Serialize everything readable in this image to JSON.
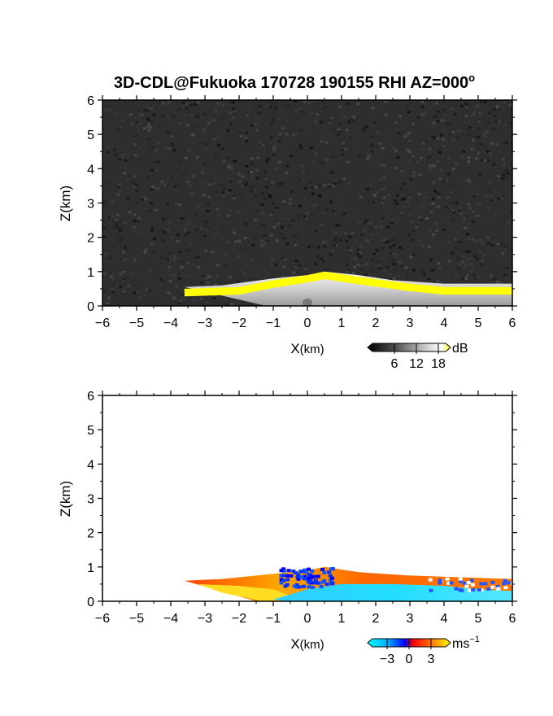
{
  "title": "3D-CDL@Fukuoka 170728 190155 RHI AZ=000",
  "title_superscript": "o",
  "chart_data": [
    {
      "type": "heatmap",
      "panel": "reflectivity",
      "xlabel_main": "X",
      "xlabel_unit": "(km)",
      "ylabel": "Z(km)",
      "xlim": [
        -6,
        6
      ],
      "ylim": [
        0,
        6
      ],
      "x_ticks": [
        "-6",
        "-5",
        "-4",
        "-3",
        "-2",
        "-1",
        "0",
        "1",
        "2",
        "3",
        "4",
        "5",
        "6"
      ],
      "y_ticks": [
        "0",
        "1",
        "2",
        "3",
        "4",
        "5",
        "6"
      ],
      "grid": false,
      "background_color": "#2e2e2e",
      "colorbar": {
        "unit": "dB",
        "tick_labels": [
          "6",
          "12",
          "18"
        ],
        "tick_values": [
          6,
          12,
          18
        ],
        "range": [
          0,
          20
        ],
        "colors": [
          "#000000",
          "#555555",
          "#aaaaaa",
          "#ffffff",
          "#ffff00"
        ]
      },
      "echo_top_km": [
        {
          "x": -3.6,
          "z": 0.55
        },
        {
          "x": -2.5,
          "z": 0.6
        },
        {
          "x": -1.0,
          "z": 0.8
        },
        {
          "x": 0.0,
          "z": 0.9
        },
        {
          "x": 0.5,
          "z": 1.0
        },
        {
          "x": 1.5,
          "z": 0.9
        },
        {
          "x": 2.5,
          "z": 0.75
        },
        {
          "x": 4.0,
          "z": 0.65
        },
        {
          "x": 6.0,
          "z": 0.65
        }
      ],
      "strong_echo_top_km": [
        {
          "x": -3.6,
          "z": 0.5
        },
        {
          "x": -2.0,
          "z": 0.55
        },
        {
          "x": -1.0,
          "z": 0.75
        },
        {
          "x": 0.0,
          "z": 0.9
        },
        {
          "x": 0.5,
          "z": 1.0
        },
        {
          "x": 1.5,
          "z": 0.85
        },
        {
          "x": 3.0,
          "z": 0.65
        },
        {
          "x": 4.0,
          "z": 0.55
        },
        {
          "x": 6.0,
          "z": 0.55
        }
      ]
    },
    {
      "type": "heatmap",
      "panel": "doppler_velocity",
      "xlabel_main": "X",
      "xlabel_unit": "(km)",
      "ylabel": "Z(km)",
      "xlim": [
        -6,
        6
      ],
      "ylim": [
        0,
        6
      ],
      "x_ticks": [
        "-6",
        "-5",
        "-4",
        "-3",
        "-2",
        "-1",
        "0",
        "1",
        "2",
        "3",
        "4",
        "5",
        "6"
      ],
      "y_ticks": [
        "0",
        "1",
        "2",
        "3",
        "4",
        "5",
        "6"
      ],
      "grid": false,
      "background_color": "#ffffff",
      "colorbar": {
        "unit": "ms",
        "unit_superscript": "−1",
        "tick_labels": [
          "−3",
          "0",
          "3"
        ],
        "tick_values": [
          -3,
          0,
          3
        ],
        "range": [
          -5,
          5
        ],
        "colors": [
          "#00ffff",
          "#00aaff",
          "#0000ff",
          "#ff0000",
          "#ff8800",
          "#ffff00"
        ]
      },
      "echo_top_km": [
        {
          "x": -3.6,
          "z": 0.6
        },
        {
          "x": -2.5,
          "z": 0.65
        },
        {
          "x": -1.0,
          "z": 0.8
        },
        {
          "x": 0.0,
          "z": 0.9
        },
        {
          "x": 0.5,
          "z": 1.0
        },
        {
          "x": 1.5,
          "z": 0.85
        },
        {
          "x": 3.0,
          "z": 0.75
        },
        {
          "x": 4.5,
          "z": 0.7
        },
        {
          "x": 6.0,
          "z": 0.65
        }
      ]
    }
  ]
}
